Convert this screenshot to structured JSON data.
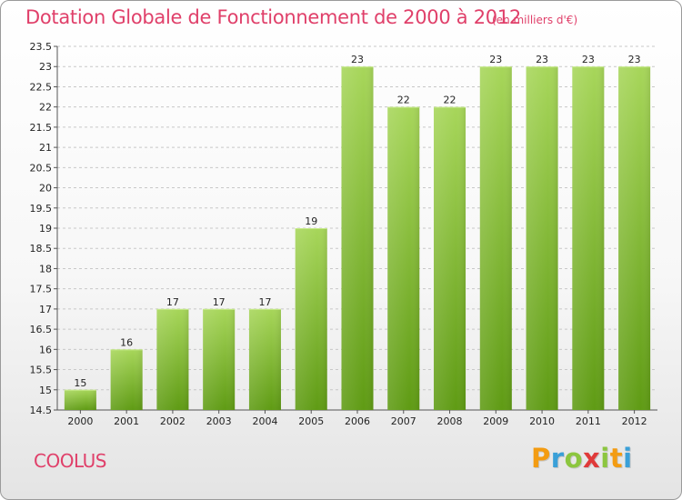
{
  "title": "Dotation Globale de Fonctionnement de 2000 à 2012",
  "unit_note": "(en milliers d'€)",
  "commune": "COOLUS",
  "logo": {
    "letters": [
      "P",
      "r",
      "o",
      "x",
      "i",
      "t",
      "i"
    ],
    "colors": [
      "#f39c12",
      "#3aa0d8",
      "#8cc63f",
      "#e03a3a",
      "#8cc63f",
      "#f39c12",
      "#3aa0d8"
    ]
  },
  "colors": {
    "title": "#e0406a",
    "bar_top": "#a7d65a",
    "bar_bottom": "#5f9b14"
  },
  "chart_data": {
    "type": "bar",
    "title": "Dotation Globale de Fonctionnement de 2000 à 2012",
    "subtitle": "(en milliers d'€)",
    "categories": [
      "2000",
      "2001",
      "2002",
      "2003",
      "2004",
      "2005",
      "2006",
      "2007",
      "2008",
      "2009",
      "2010",
      "2011",
      "2012"
    ],
    "values": [
      15,
      16,
      17,
      17,
      17,
      19,
      23,
      22,
      22,
      23,
      23,
      23,
      23
    ],
    "ylim": [
      14.5,
      23.5
    ],
    "yticks": [
      "14.5",
      "15",
      "15.5",
      "16",
      "16.5",
      "17",
      "17.5",
      "18",
      "18.5",
      "19",
      "19.5",
      "20",
      "20.5",
      "21",
      "21.5",
      "22",
      "22.5",
      "23",
      "23.5"
    ],
    "grid": true
  }
}
